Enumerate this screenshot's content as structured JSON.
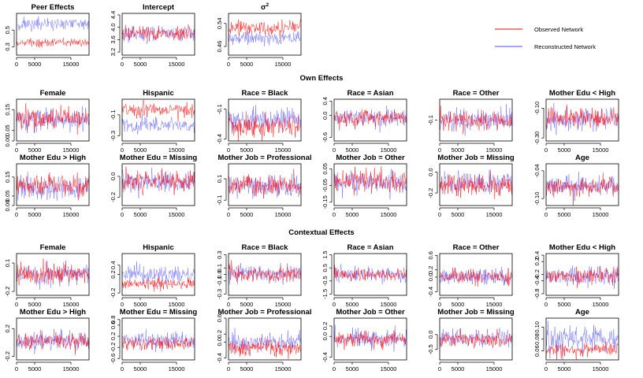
{
  "chart_data": {
    "type": "line",
    "description_kind": "MCMC trace plots",
    "x": [
      0,
      20000
    ],
    "x_ticks": [
      0,
      5000,
      15000
    ],
    "x_tick_labels": [
      "0",
      "5000",
      "15000"
    ],
    "series_names": [
      "Observed Network",
      "Reconstructed Network"
    ],
    "colors": {
      "observed": "#ff0000",
      "reconstructed": "#4d4dff",
      "overlap": "#6a0dad"
    },
    "legend": {
      "position": "top-right",
      "entries": [
        "Observed Network",
        "Reconstructed Network"
      ]
    },
    "sections": [
      "Own Effects",
      "Contextual Effects"
    ],
    "panels": [
      {
        "section": "top",
        "row": 0,
        "col": 0,
        "title": "Peer Effects",
        "title_sup": "",
        "ylim": [
          0.2,
          0.7
        ],
        "yticks": [
          0.3,
          0.5
        ],
        "ytick_labels": [
          "0.3",
          "0.5"
        ],
        "observed": {
          "mean": 0.35,
          "sd": 0.025
        },
        "reconstructed": {
          "mean": 0.57,
          "sd": 0.04
        }
      },
      {
        "section": "top",
        "row": 0,
        "col": 1,
        "title": "Intercept",
        "title_sup": "",
        "ylim": [
          3.1,
          4.45
        ],
        "yticks": [
          3.2,
          3.6,
          4.0,
          4.4
        ],
        "ytick_labels": [
          "3.2",
          "3.6",
          "4.0",
          "4.4"
        ],
        "observed": {
          "mean": 3.8,
          "sd": 0.12
        },
        "reconstructed": {
          "mean": 3.78,
          "sd": 0.12
        }
      },
      {
        "section": "top",
        "row": 0,
        "col": 2,
        "title": "σ",
        "title_sup": "2",
        "ylim": [
          0.43,
          0.575
        ],
        "yticks": [
          0.46,
          0.54
        ],
        "ytick_labels": [
          "0.46",
          "0.54"
        ],
        "observed": {
          "mean": 0.525,
          "sd": 0.012
        },
        "reconstructed": {
          "mean": 0.49,
          "sd": 0.012
        }
      },
      {
        "section": "own",
        "row": 1,
        "col": 0,
        "title": "Female",
        "title_sup": "",
        "ylim": [
          0.0,
          0.2
        ],
        "yticks": [
          0.0,
          0.05,
          0.15
        ],
        "ytick_labels": [
          "0.00",
          "0.05",
          "0.15"
        ],
        "observed": {
          "mean": 0.11,
          "sd": 0.025
        },
        "reconstructed": {
          "mean": 0.1,
          "sd": 0.028
        }
      },
      {
        "section": "own",
        "row": 1,
        "col": 1,
        "title": "Hispanic",
        "title_sup": "",
        "ylim": [
          -0.35,
          0.05
        ],
        "yticks": [
          -0.3,
          -0.1
        ],
        "ytick_labels": [
          "-0.3",
          "-0.1"
        ],
        "observed": {
          "mean": -0.05,
          "sd": 0.035
        },
        "reconstructed": {
          "mean": -0.2,
          "sd": 0.04
        }
      },
      {
        "section": "own",
        "row": 1,
        "col": 2,
        "title": "Race = Black",
        "title_sup": "",
        "ylim": [
          -0.42,
          0.0
        ],
        "yticks": [
          -0.4,
          -0.1
        ],
        "ytick_labels": [
          "-0.4",
          "-0.1"
        ],
        "observed": {
          "mean": -0.26,
          "sd": 0.06
        },
        "reconstructed": {
          "mean": -0.2,
          "sd": 0.06
        }
      },
      {
        "section": "own",
        "row": 1,
        "col": 3,
        "title": "Race = Asian",
        "title_sup": "",
        "ylim": [
          -0.7,
          0.45
        ],
        "yticks": [
          -0.6,
          0.0,
          0.4
        ],
        "ytick_labels": [
          "-0.6",
          "0.0",
          "0.4"
        ],
        "observed": {
          "mean": -0.08,
          "sd": 0.12
        },
        "reconstructed": {
          "mean": -0.06,
          "sd": 0.13
        }
      },
      {
        "section": "own",
        "row": 1,
        "col": 4,
        "title": "Race = Other",
        "title_sup": "",
        "ylim": [
          -0.22,
          0.02
        ],
        "yticks": [
          -0.1
        ],
        "ytick_labels": [
          "-0.1"
        ],
        "observed": {
          "mean": -0.1,
          "sd": 0.03
        },
        "reconstructed": {
          "mean": -0.1,
          "sd": 0.03
        }
      },
      {
        "section": "own",
        "row": 1,
        "col": 5,
        "title": "Mother Edu < High",
        "title_sup": "",
        "ylim": [
          -0.32,
          -0.04
        ],
        "yticks": [
          -0.3,
          -0.1
        ],
        "ytick_labels": [
          "-0.30",
          "-0.10"
        ],
        "observed": {
          "mean": -0.17,
          "sd": 0.035
        },
        "reconstructed": {
          "mean": -0.18,
          "sd": 0.04
        }
      },
      {
        "section": "own",
        "row": 2,
        "col": 0,
        "title": "Mother Edu > High",
        "title_sup": "",
        "ylim": [
          0.0,
          0.22
        ],
        "yticks": [
          0.0,
          0.05,
          0.15
        ],
        "ytick_labels": [
          "0.00",
          "0.05",
          "0.15"
        ],
        "observed": {
          "mean": 0.11,
          "sd": 0.03
        },
        "reconstructed": {
          "mean": 0.09,
          "sd": 0.03
        }
      },
      {
        "section": "own",
        "row": 2,
        "col": 1,
        "title": "Mother Edu = Missing",
        "title_sup": "",
        "ylim": [
          -0.28,
          0.12
        ],
        "yticks": [
          -0.2,
          0.0
        ],
        "ytick_labels": [
          "-0.2",
          "0.0"
        ],
        "observed": {
          "mean": -0.05,
          "sd": 0.05
        },
        "reconstructed": {
          "mean": -0.06,
          "sd": 0.05
        }
      },
      {
        "section": "own",
        "row": 2,
        "col": 2,
        "title": "Mother Job = Professional",
        "title_sup": "",
        "ylim": [
          -0.15,
          0.24
        ],
        "yticks": [
          -0.1,
          0.1
        ],
        "ytick_labels": [
          "-0.1",
          "0.1"
        ],
        "observed": {
          "mean": 0.04,
          "sd": 0.05
        },
        "reconstructed": {
          "mean": 0.03,
          "sd": 0.05
        }
      },
      {
        "section": "own",
        "row": 2,
        "col": 3,
        "title": "Mother Job = Other",
        "title_sup": "",
        "ylim": [
          -0.17,
          0.08
        ],
        "yticks": [
          -0.15,
          -0.05,
          0.05
        ],
        "ytick_labels": [
          "-0.15",
          "-0.05",
          "0.05"
        ],
        "observed": {
          "mean": -0.02,
          "sd": 0.035
        },
        "reconstructed": {
          "mean": -0.03,
          "sd": 0.035
        }
      },
      {
        "section": "own",
        "row": 2,
        "col": 4,
        "title": "Mother Job = Missing",
        "title_sup": "",
        "ylim": [
          -0.32,
          0.08
        ],
        "yticks": [
          -0.2,
          0.0
        ],
        "ytick_labels": [
          "-0.2",
          "0.0"
        ],
        "observed": {
          "mean": -0.12,
          "sd": 0.05
        },
        "reconstructed": {
          "mean": -0.1,
          "sd": 0.05
        }
      },
      {
        "section": "own",
        "row": 2,
        "col": 5,
        "title": "Age",
        "title_sup": "",
        "ylim": [
          -0.115,
          -0.025
        ],
        "yticks": [
          -0.1,
          -0.04
        ],
        "ytick_labels": [
          "-0.10",
          "-0.04"
        ],
        "observed": {
          "mean": -0.075,
          "sd": 0.01
        },
        "reconstructed": {
          "mean": -0.072,
          "sd": 0.011
        }
      },
      {
        "section": "contextual",
        "row": 3,
        "col": 0,
        "title": "Female",
        "title_sup": "",
        "ylim": [
          -0.24,
          0.2
        ],
        "yticks": [
          -0.2,
          0.1
        ],
        "ytick_labels": [
          "-0.2",
          "0.1"
        ],
        "observed": {
          "mean": -0.02,
          "sd": 0.05
        },
        "reconstructed": {
          "mean": -0.02,
          "sd": 0.055
        }
      },
      {
        "section": "contextual",
        "row": 3,
        "col": 1,
        "title": "Hispanic",
        "title_sup": "",
        "ylim": [
          -0.25,
          0.65
        ],
        "yticks": [
          -0.2,
          0.2,
          0.4
        ],
        "ytick_labels": [
          "-0.2",
          "0.2",
          "0.4"
        ],
        "observed": {
          "mean": 0.0,
          "sd": 0.06
        },
        "reconstructed": {
          "mean": 0.2,
          "sd": 0.1
        }
      },
      {
        "section": "contextual",
        "row": 3,
        "col": 2,
        "title": "Race = Black",
        "title_sup": "",
        "ylim": [
          -0.32,
          0.32
        ],
        "yticks": [
          -0.3,
          -0.1,
          0.0,
          0.1,
          0.3
        ],
        "ytick_labels": [
          "-0.3",
          "-0.1",
          "0.0",
          "0.1",
          "0.3"
        ],
        "observed": {
          "mean": 0.0,
          "sd": 0.06
        },
        "reconstructed": {
          "mean": 0.01,
          "sd": 0.07
        }
      },
      {
        "section": "contextual",
        "row": 3,
        "col": 3,
        "title": "Race = Asian",
        "title_sup": "",
        "ylim": [
          -1.6,
          1.6
        ],
        "yticks": [
          -1.5,
          -0.5,
          0.5,
          1.5
        ],
        "ytick_labels": [
          "-1.5",
          "-0.5",
          "0.5",
          "1.5"
        ],
        "observed": {
          "mean": 0.0,
          "sd": 0.25
        },
        "reconstructed": {
          "mean": 0.0,
          "sd": 0.3
        }
      },
      {
        "section": "contextual",
        "row": 3,
        "col": 4,
        "title": "Race = Other",
        "title_sup": "",
        "ylim": [
          -0.5,
          0.65
        ],
        "yticks": [
          -0.4,
          0.0,
          0.2,
          0.6
        ],
        "ytick_labels": [
          "-0.4",
          "0.0",
          "0.2",
          "0.6"
        ],
        "observed": {
          "mean": 0.0,
          "sd": 0.1
        },
        "reconstructed": {
          "mean": 0.02,
          "sd": 0.12
        }
      },
      {
        "section": "contextual",
        "row": 3,
        "col": 5,
        "title": "Mother Edu < High",
        "title_sup": "",
        "ylim": [
          -0.85,
          0.45
        ],
        "yticks": [
          -0.8,
          -0.4,
          -0.2,
          0.2,
          0.4
        ],
        "ytick_labels": [
          "-0.8",
          "-0.4",
          "-0.2",
          "0.2",
          "0.4"
        ],
        "observed": {
          "mean": -0.25,
          "sd": 0.12
        },
        "reconstructed": {
          "mean": -0.25,
          "sd": 0.14
        }
      },
      {
        "section": "contextual",
        "row": 4,
        "col": 0,
        "title": "Mother Edu > High",
        "title_sup": "",
        "ylim": [
          -0.25,
          0.35
        ],
        "yticks": [
          -0.2,
          0.2
        ],
        "ytick_labels": [
          "-0.2",
          "0.2"
        ],
        "observed": {
          "mean": 0.03,
          "sd": 0.06
        },
        "reconstructed": {
          "mean": 0.02,
          "sd": 0.07
        }
      },
      {
        "section": "contextual",
        "row": 4,
        "col": 1,
        "title": "Mother Edu = Missing",
        "title_sup": "",
        "ylim": [
          -0.65,
          0.85
        ],
        "yticks": [
          -0.6,
          -0.2,
          0.2,
          0.6,
          0.8
        ],
        "ytick_labels": [
          "-0.6",
          "-0.2",
          "0.2",
          "0.6",
          "0.8"
        ],
        "observed": {
          "mean": -0.05,
          "sd": 0.12
        },
        "reconstructed": {
          "mean": 0.05,
          "sd": 0.15
        }
      },
      {
        "section": "contextual",
        "row": 4,
        "col": 2,
        "title": "Mother Job = Professional",
        "title_sup": "",
        "ylim": [
          -0.45,
          0.6
        ],
        "yticks": [
          -0.4,
          0.0,
          0.2,
          0.6
        ],
        "ytick_labels": [
          "-0.4",
          "0.0",
          "0.2",
          "0.6"
        ],
        "observed": {
          "mean": -0.15,
          "sd": 0.1
        },
        "reconstructed": {
          "mean": 0.0,
          "sd": 0.12
        }
      },
      {
        "section": "contextual",
        "row": 4,
        "col": 3,
        "title": "Mother Job = Other",
        "title_sup": "",
        "ylim": [
          -0.45,
          0.35
        ],
        "yticks": [
          -0.4,
          0.0,
          0.2
        ],
        "ytick_labels": [
          "-0.4",
          "0.0",
          "0.2"
        ],
        "observed": {
          "mean": -0.05,
          "sd": 0.07
        },
        "reconstructed": {
          "mean": -0.04,
          "sd": 0.08
        }
      },
      {
        "section": "contextual",
        "row": 4,
        "col": 4,
        "title": "Mother Job = Missing",
        "title_sup": "",
        "ylim": [
          -0.85,
          0.55
        ],
        "yticks": [
          -0.5,
          0.0
        ],
        "ytick_labels": [
          "-0.5",
          "0.0"
        ],
        "observed": {
          "mean": -0.15,
          "sd": 0.12
        },
        "reconstructed": {
          "mean": -0.12,
          "sd": 0.14
        }
      },
      {
        "section": "contextual",
        "row": 4,
        "col": 5,
        "title": "Age",
        "title_sup": "",
        "ylim": [
          0.045,
          0.115
        ],
        "yticks": [
          0.06,
          0.08,
          0.1
        ],
        "ytick_labels": [
          "0.06",
          "0.08",
          "0.10"
        ],
        "observed": {
          "mean": 0.063,
          "sd": 0.006
        },
        "reconstructed": {
          "mean": 0.08,
          "sd": 0.01
        }
      }
    ]
  }
}
